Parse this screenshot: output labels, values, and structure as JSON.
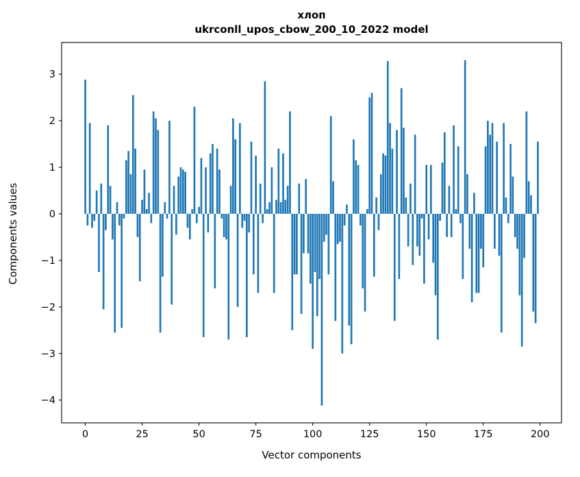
{
  "figure": {
    "title_line1": "хлоп",
    "title_line2": "ukrconll_upos_cbow_200_10_2022 model"
  },
  "chart_data": {
    "type": "bar",
    "title": "хлоп",
    "subtitle": "ukrconll_upos_cbow_200_10_2022 model",
    "xlabel": "Vector components",
    "ylabel": "Components values",
    "legend": null,
    "grid": false,
    "bar_color": "#1f77b4",
    "x_ticks": [
      0,
      25,
      50,
      75,
      100,
      125,
      150,
      175,
      200
    ],
    "y_ticks": [
      3,
      2,
      1,
      0,
      -1,
      -2,
      -3,
      -4
    ],
    "xlim": [
      -10.4,
      209.4
    ],
    "ylim": [
      -4.49,
      3.68
    ],
    "x_start": 0,
    "values": [
      2.88,
      -0.25,
      1.95,
      -0.3,
      -0.15,
      0.5,
      -1.25,
      0.65,
      -2.05,
      -0.35,
      1.9,
      0.6,
      -0.55,
      -2.55,
      0.25,
      -0.25,
      -2.45,
      -0.1,
      1.15,
      1.35,
      0.85,
      2.55,
      1.4,
      -0.5,
      -1.45,
      0.3,
      0.95,
      0.1,
      0.45,
      -0.2,
      2.2,
      2.05,
      1.8,
      -2.55,
      -1.35,
      0.25,
      -0.1,
      2.0,
      -1.95,
      0.6,
      -0.45,
      0.8,
      1.0,
      0.95,
      0.9,
      -0.3,
      -0.55,
      0.1,
      2.3,
      -0.2,
      0.15,
      1.2,
      -2.65,
      1.0,
      -0.4,
      1.3,
      1.5,
      -1.6,
      1.4,
      0.95,
      -0.1,
      -0.5,
      -0.55,
      -2.7,
      0.6,
      2.05,
      1.6,
      -2.0,
      1.95,
      -0.3,
      -0.15,
      -2.65,
      -0.4,
      1.55,
      -1.3,
      1.25,
      -1.7,
      0.65,
      -0.2,
      2.85,
      0.1,
      0.25,
      1.0,
      -1.7,
      0.3,
      1.4,
      0.25,
      1.3,
      0.3,
      0.6,
      2.2,
      -2.5,
      -1.3,
      -1.3,
      0.65,
      -2.15,
      -0.85,
      0.75,
      -0.85,
      -1.5,
      -2.9,
      -1.25,
      -2.2,
      -1.4,
      -4.12,
      -0.6,
      -0.45,
      -1.3,
      2.1,
      0.7,
      -2.3,
      -0.65,
      -0.6,
      -3.0,
      -0.25,
      0.2,
      -2.4,
      -2.8,
      1.6,
      1.15,
      1.05,
      -0.25,
      -1.6,
      -2.1,
      0.1,
      2.5,
      2.6,
      -1.35,
      0.35,
      -0.35,
      0.85,
      1.3,
      1.25,
      3.28,
      1.95,
      1.4,
      -2.3,
      1.8,
      -1.4,
      2.7,
      1.85,
      0.35,
      -0.7,
      0.65,
      -1.1,
      1.7,
      -0.7,
      -0.9,
      -0.1,
      -1.5,
      1.05,
      -0.55,
      1.05,
      -1.05,
      -1.75,
      -2.7,
      -0.15,
      1.1,
      1.75,
      -0.5,
      0.6,
      -0.5,
      1.9,
      0.1,
      1.45,
      -0.2,
      -1.4,
      3.3,
      0.85,
      -0.75,
      -1.9,
      0.45,
      -1.7,
      -1.7,
      -0.75,
      -1.15,
      1.45,
      2.0,
      1.7,
      1.95,
      -0.75,
      1.55,
      -0.9,
      -2.55,
      1.95,
      0.35,
      -0.2,
      1.5,
      0.8,
      -0.5,
      -0.75,
      -1.75,
      -2.85,
      -0.95,
      2.2,
      0.7,
      0.4,
      -2.1,
      -2.35,
      1.55
    ]
  }
}
